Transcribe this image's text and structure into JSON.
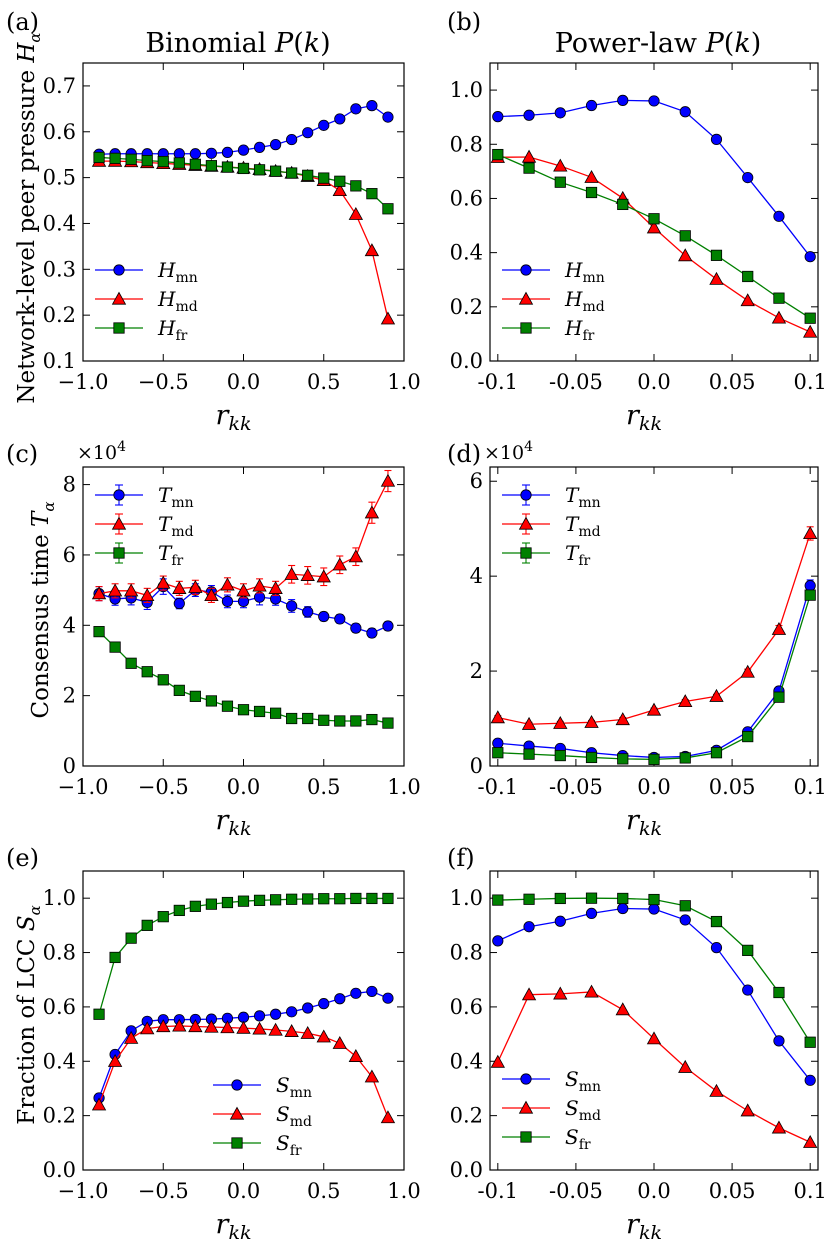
{
  "figure": {
    "column_titles": {
      "left": {
        "main": "Binomial ",
        "italic": "P",
        "open": "(",
        "var": "k",
        "close": ")"
      },
      "right": {
        "main": "Power-law ",
        "italic": "P",
        "open": "(",
        "var": "k",
        "close": ")"
      }
    },
    "row_ylabels": [
      {
        "main": "Network-level peer pressure ",
        "sym": "H",
        "sub": "α"
      },
      {
        "main": "Consensus time ",
        "sym": "T",
        "sub": "α"
      },
      {
        "main": "Fraction of LCC ",
        "sym": "S",
        "sub": "α"
      }
    ],
    "xlabel": {
      "sym": "r",
      "sub": "kk"
    },
    "multiplier": {
      "base": "×10",
      "exp": "4"
    },
    "colors": {
      "mn": "#0000ff",
      "md": "#ff0000",
      "fr": "#008000"
    }
  },
  "chart_data": [
    {
      "panel_label": "(a)",
      "type": "line",
      "xlim": [
        -1.0,
        1.0
      ],
      "ylim": [
        0.1,
        0.75
      ],
      "xticks": [
        -1.0,
        -0.5,
        0.0,
        0.5,
        1.0
      ],
      "xtick_labels": [
        "−1.0",
        "−0.5",
        "0.0",
        "0.5",
        "1.0"
      ],
      "yticks": [
        0.1,
        0.2,
        0.3,
        0.4,
        0.5,
        0.6,
        0.7
      ],
      "ytick_labels": [
        "0.1",
        "0.2",
        "0.3",
        "0.4",
        "0.5",
        "0.6",
        "0.7"
      ],
      "legend_position": "bottom-left",
      "x": [
        -0.9,
        -0.8,
        -0.7,
        -0.6,
        -0.5,
        -0.4,
        -0.3,
        -0.2,
        -0.1,
        0.0,
        0.1,
        0.2,
        0.3,
        0.4,
        0.5,
        0.6,
        0.7,
        0.8,
        0.9
      ],
      "series": [
        {
          "key": "mn",
          "legend": {
            "sym": "H",
            "sub": "mn"
          },
          "marker": "circle",
          "values": [
            0.551,
            0.552,
            0.552,
            0.552,
            0.552,
            0.552,
            0.552,
            0.553,
            0.555,
            0.56,
            0.566,
            0.572,
            0.583,
            0.598,
            0.614,
            0.628,
            0.65,
            0.657,
            0.632
          ]
        },
        {
          "key": "md",
          "legend": {
            "sym": "H",
            "sub": "md"
          },
          "marker": "triangle",
          "values": [
            0.536,
            0.536,
            0.535,
            0.533,
            0.531,
            0.529,
            0.527,
            0.525,
            0.523,
            0.521,
            0.518,
            0.514,
            0.51,
            0.503,
            0.494,
            0.472,
            0.42,
            0.341,
            0.192
          ]
        },
        {
          "key": "fr",
          "legend": {
            "sym": "H",
            "sub": "fr"
          },
          "marker": "square",
          "values": [
            0.544,
            0.542,
            0.54,
            0.537,
            0.535,
            0.532,
            0.529,
            0.526,
            0.523,
            0.52,
            0.517,
            0.514,
            0.51,
            0.505,
            0.499,
            0.492,
            0.482,
            0.465,
            0.432
          ]
        }
      ]
    },
    {
      "panel_label": "(b)",
      "type": "line",
      "xlim": [
        -0.105,
        0.105
      ],
      "ylim": [
        0.0,
        1.1
      ],
      "xticks": [
        -0.1,
        -0.05,
        0.0,
        0.05,
        0.1
      ],
      "xtick_labels": [
        "-0.1",
        "-0.05",
        "0.0",
        "0.05",
        "0.1"
      ],
      "yticks": [
        0.0,
        0.2,
        0.4,
        0.6,
        0.8,
        1.0
      ],
      "ytick_labels": [
        "0.0",
        "0.2",
        "0.4",
        "0.6",
        "0.8",
        "1.0"
      ],
      "legend_position": "bottom-left",
      "x": [
        -0.1,
        -0.08,
        -0.06,
        -0.04,
        -0.02,
        0.0,
        0.02,
        0.04,
        0.06,
        0.08,
        0.1
      ],
      "series": [
        {
          "key": "mn",
          "legend": {
            "sym": "H",
            "sub": "mn"
          },
          "marker": "circle",
          "values": [
            0.902,
            0.907,
            0.916,
            0.943,
            0.962,
            0.96,
            0.92,
            0.818,
            0.677,
            0.534,
            0.385
          ]
        },
        {
          "key": "md",
          "legend": {
            "sym": "H",
            "sub": "md"
          },
          "marker": "triangle",
          "values": [
            0.752,
            0.753,
            0.72,
            0.678,
            0.601,
            0.492,
            0.389,
            0.302,
            0.223,
            0.159,
            0.107
          ]
        },
        {
          "key": "fr",
          "legend": {
            "sym": "H",
            "sub": "fr"
          },
          "marker": "square",
          "values": [
            0.762,
            0.712,
            0.66,
            0.622,
            0.578,
            0.525,
            0.462,
            0.39,
            0.312,
            0.232,
            0.158
          ]
        }
      ]
    },
    {
      "panel_label": "(c)",
      "type": "line",
      "multiplier": true,
      "xlim": [
        -1.0,
        1.0
      ],
      "ylim": [
        0,
        8.5
      ],
      "xticks": [
        -1.0,
        -0.5,
        0.0,
        0.5,
        1.0
      ],
      "xtick_labels": [
        "−1.0",
        "−0.5",
        "0.0",
        "0.5",
        "1.0"
      ],
      "yticks": [
        0,
        2,
        4,
        6,
        8
      ],
      "ytick_labels": [
        "0",
        "2",
        "4",
        "6",
        "8"
      ],
      "legend_position": "top-left",
      "x": [
        -0.9,
        -0.8,
        -0.7,
        -0.6,
        -0.5,
        -0.4,
        -0.3,
        -0.2,
        -0.1,
        0.0,
        0.1,
        0.2,
        0.3,
        0.4,
        0.5,
        0.6,
        0.7,
        0.8,
        0.9
      ],
      "series": [
        {
          "key": "mn",
          "legend": {
            "sym": "T",
            "sub": "mn"
          },
          "marker": "circle",
          "values": [
            4.9,
            4.75,
            4.78,
            4.65,
            5.1,
            4.62,
            5.0,
            4.95,
            4.68,
            4.68,
            4.8,
            4.75,
            4.55,
            4.38,
            4.25,
            4.18,
            3.92,
            3.78,
            3.98
          ],
          "errors": [
            0.2,
            0.18,
            0.2,
            0.2,
            0.22,
            0.15,
            0.18,
            0.18,
            0.18,
            0.18,
            0.22,
            0.18,
            0.18,
            0.15,
            0.12,
            0.12,
            0.12,
            0.12,
            0.12
          ]
        },
        {
          "key": "md",
          "legend": {
            "sym": "T",
            "sub": "md"
          },
          "marker": "triangle",
          "values": [
            4.9,
            4.98,
            4.98,
            4.85,
            5.2,
            5.05,
            5.08,
            4.85,
            5.15,
            4.98,
            5.12,
            5.05,
            5.45,
            5.42,
            5.38,
            5.72,
            5.95,
            7.2,
            8.1
          ],
          "errors": [
            0.2,
            0.2,
            0.2,
            0.2,
            0.2,
            0.2,
            0.2,
            0.2,
            0.2,
            0.2,
            0.2,
            0.2,
            0.25,
            0.25,
            0.25,
            0.25,
            0.25,
            0.3,
            0.3
          ]
        },
        {
          "key": "fr",
          "legend": {
            "sym": "T",
            "sub": "fr"
          },
          "marker": "square",
          "values": [
            3.82,
            3.38,
            2.92,
            2.68,
            2.45,
            2.15,
            1.98,
            1.85,
            1.7,
            1.6,
            1.55,
            1.5,
            1.35,
            1.35,
            1.3,
            1.28,
            1.28,
            1.32,
            1.22
          ],
          "errors": [
            0.05,
            0.05,
            0.05,
            0.05,
            0.05,
            0.05,
            0.05,
            0.05,
            0.05,
            0.05,
            0.05,
            0.05,
            0.05,
            0.05,
            0.05,
            0.05,
            0.05,
            0.05,
            0.05
          ]
        }
      ]
    },
    {
      "panel_label": "(d)",
      "type": "line",
      "multiplier": true,
      "xlim": [
        -0.105,
        0.105
      ],
      "ylim": [
        0,
        6.3
      ],
      "xticks": [
        -0.1,
        -0.05,
        0.0,
        0.05,
        0.1
      ],
      "xtick_labels": [
        "-0.1",
        "-0.05",
        "0.0",
        "0.05",
        "0.1"
      ],
      "yticks": [
        0,
        2,
        4,
        6
      ],
      "ytick_labels": [
        "0",
        "2",
        "4",
        "6"
      ],
      "legend_position": "top-left",
      "x": [
        -0.1,
        -0.08,
        -0.06,
        -0.04,
        -0.02,
        0.0,
        0.02,
        0.04,
        0.06,
        0.08,
        0.1
      ],
      "series": [
        {
          "key": "mn",
          "legend": {
            "sym": "T",
            "sub": "mn"
          },
          "marker": "circle",
          "values": [
            0.48,
            0.42,
            0.37,
            0.28,
            0.22,
            0.18,
            0.2,
            0.33,
            0.72,
            1.58,
            3.8
          ],
          "errors": [
            0.04,
            0.04,
            0.04,
            0.04,
            0.04,
            0.04,
            0.04,
            0.04,
            0.06,
            0.08,
            0.12
          ]
        },
        {
          "key": "md",
          "legend": {
            "sym": "T",
            "sub": "md"
          },
          "marker": "triangle",
          "values": [
            1.02,
            0.88,
            0.9,
            0.92,
            0.98,
            1.18,
            1.36,
            1.47,
            1.98,
            2.88,
            4.9
          ],
          "errors": [
            0.04,
            0.04,
            0.04,
            0.04,
            0.04,
            0.04,
            0.04,
            0.04,
            0.06,
            0.08,
            0.14
          ]
        },
        {
          "key": "fr",
          "legend": {
            "sym": "T",
            "sub": "fr"
          },
          "marker": "square",
          "values": [
            0.28,
            0.25,
            0.22,
            0.18,
            0.15,
            0.14,
            0.17,
            0.28,
            0.62,
            1.45,
            3.6
          ],
          "errors": [
            0.03,
            0.03,
            0.03,
            0.03,
            0.03,
            0.03,
            0.03,
            0.03,
            0.05,
            0.07,
            0.1
          ]
        }
      ]
    },
    {
      "panel_label": "(e)",
      "type": "line",
      "xlim": [
        -1.0,
        1.0
      ],
      "ylim": [
        0.0,
        1.1
      ],
      "xticks": [
        -1.0,
        -0.5,
        0.0,
        0.5,
        1.0
      ],
      "xtick_labels": [
        "−1.0",
        "−0.5",
        "0.0",
        "0.5",
        "1.0"
      ],
      "yticks": [
        0.0,
        0.2,
        0.4,
        0.6,
        0.8,
        1.0
      ],
      "ytick_labels": [
        "0.0",
        "0.2",
        "0.4",
        "0.6",
        "0.8",
        "1.0"
      ],
      "legend_position": "bottom-center",
      "x": [
        -0.9,
        -0.8,
        -0.7,
        -0.6,
        -0.5,
        -0.4,
        -0.3,
        -0.2,
        -0.1,
        0.0,
        0.1,
        0.2,
        0.3,
        0.4,
        0.5,
        0.6,
        0.7,
        0.8,
        0.9
      ],
      "series": [
        {
          "key": "mn",
          "legend": {
            "sym": "S",
            "sub": "mn"
          },
          "marker": "circle",
          "values": [
            0.265,
            0.425,
            0.512,
            0.547,
            0.553,
            0.553,
            0.554,
            0.555,
            0.558,
            0.562,
            0.567,
            0.573,
            0.582,
            0.596,
            0.612,
            0.63,
            0.65,
            0.657,
            0.632
          ]
        },
        {
          "key": "md",
          "legend": {
            "sym": "S",
            "sub": "md"
          },
          "marker": "triangle",
          "values": [
            0.24,
            0.4,
            0.485,
            0.52,
            0.528,
            0.53,
            0.528,
            0.526,
            0.524,
            0.522,
            0.519,
            0.515,
            0.51,
            0.503,
            0.49,
            0.466,
            0.418,
            0.343,
            0.193
          ]
        },
        {
          "key": "fr",
          "legend": {
            "sym": "S",
            "sub": "fr"
          },
          "marker": "square",
          "values": [
            0.573,
            0.782,
            0.853,
            0.9,
            0.932,
            0.955,
            0.97,
            0.978,
            0.984,
            0.989,
            0.992,
            0.994,
            0.996,
            0.997,
            0.998,
            0.998,
            0.999,
            0.999,
            0.999
          ]
        }
      ]
    },
    {
      "panel_label": "(f)",
      "type": "line",
      "xlim": [
        -0.105,
        0.105
      ],
      "ylim": [
        0.0,
        1.1
      ],
      "xticks": [
        -0.1,
        -0.05,
        0.0,
        0.05,
        0.1
      ],
      "xtick_labels": [
        "-0.1",
        "-0.05",
        "0.0",
        "0.05",
        "0.1"
      ],
      "yticks": [
        0.0,
        0.2,
        0.4,
        0.6,
        0.8,
        1.0
      ],
      "ytick_labels": [
        "0.0",
        "0.2",
        "0.4",
        "0.6",
        "0.8",
        "1.0"
      ],
      "legend_position": "bottom-left",
      "x": [
        -0.1,
        -0.08,
        -0.06,
        -0.04,
        -0.02,
        0.0,
        0.02,
        0.04,
        0.06,
        0.08,
        0.1
      ],
      "series": [
        {
          "key": "mn",
          "legend": {
            "sym": "S",
            "sub": "mn"
          },
          "marker": "circle",
          "values": [
            0.843,
            0.895,
            0.915,
            0.944,
            0.962,
            0.96,
            0.92,
            0.818,
            0.662,
            0.475,
            0.33
          ]
        },
        {
          "key": "md",
          "legend": {
            "sym": "S",
            "sub": "md"
          },
          "marker": "triangle",
          "values": [
            0.397,
            0.645,
            0.648,
            0.655,
            0.59,
            0.483,
            0.378,
            0.29,
            0.218,
            0.155,
            0.102
          ]
        },
        {
          "key": "fr",
          "legend": {
            "sym": "S",
            "sub": "fr"
          },
          "marker": "square",
          "values": [
            0.993,
            0.996,
            0.999,
            1.0,
            0.999,
            0.995,
            0.972,
            0.914,
            0.808,
            0.653,
            0.47
          ]
        }
      ]
    }
  ]
}
